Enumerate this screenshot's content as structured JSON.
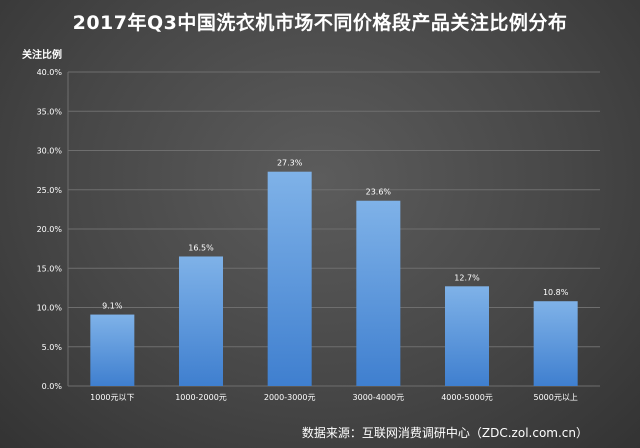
{
  "chart_data": {
    "type": "bar",
    "title": "2017年Q3中国洗衣机市场不同价格段产品关注比例分布",
    "xlabel": "",
    "ylabel": "关注比例",
    "categories": [
      "1000元以下",
      "1000-2000元",
      "2000-3000元",
      "3000-4000元",
      "4000-5000元",
      "5000元以上"
    ],
    "values": [
      9.1,
      16.5,
      27.3,
      23.6,
      12.7,
      10.8
    ],
    "value_labels": [
      "9.1%",
      "16.5%",
      "27.3%",
      "23.6%",
      "12.7%",
      "10.8%"
    ],
    "ylim": [
      0,
      40
    ],
    "yticks": [
      0,
      5,
      10,
      15,
      20,
      25,
      30,
      35,
      40
    ],
    "ytick_labels": [
      "0.0%",
      "5.0%",
      "10.0%",
      "15.0%",
      "20.0%",
      "25.0%",
      "30.0%",
      "35.0%",
      "40.0%"
    ],
    "grid": true,
    "legend": "none",
    "source": "数据来源：互联网消费调研中心（ZDC.zol.com.cn）"
  },
  "colors": {
    "bar_top": "#7fb2e8",
    "bar_bottom": "#3f7fcf",
    "grid": "#6e6e6e",
    "text": "#ffffff"
  }
}
